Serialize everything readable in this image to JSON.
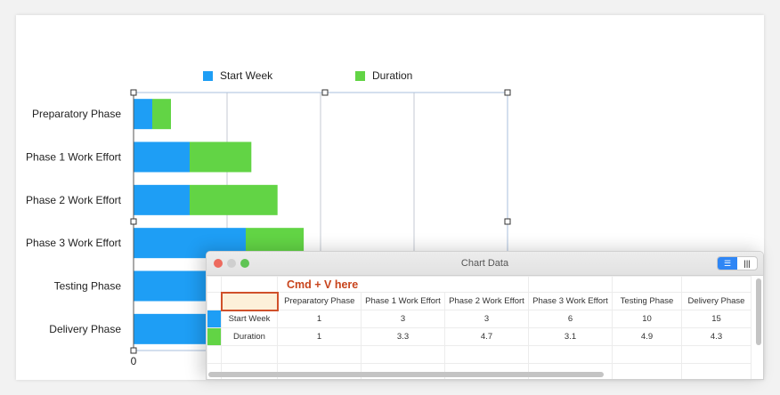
{
  "chart_data": {
    "type": "bar",
    "orientation": "horizontal",
    "stacked": true,
    "categories": [
      "Preparatory Phase",
      "Phase 1 Work Effort",
      "Phase 2 Work Effort",
      "Phase 3 Work Effort",
      "Testing Phase",
      "Delivery Phase"
    ],
    "series": [
      {
        "name": "Start Week",
        "values": [
          1,
          3,
          3,
          6,
          10,
          15
        ],
        "color": "#1e9ef5"
      },
      {
        "name": "Duration",
        "values": [
          1,
          3.3,
          4.7,
          3.1,
          4.9,
          4.3
        ],
        "color": "#62d445"
      }
    ],
    "xlim": [
      0,
      20
    ],
    "xticks_visible": [
      "0"
    ],
    "grid": true,
    "legend": "top"
  },
  "window": {
    "title": "Chart Data",
    "hint": "Cmd + V here",
    "view_toggle": [
      "☰",
      "|||"
    ],
    "columns": [
      "Preparatory Phase",
      "Phase 1 Work Effort",
      "Phase 2 Work Effort",
      "Phase 3 Work Effort",
      "Testing Phase",
      "Delivery Phase"
    ],
    "rows": [
      {
        "label": "Start Week",
        "color": "#1e9ef5",
        "values": [
          "1",
          "3",
          "3",
          "6",
          "10",
          "15"
        ]
      },
      {
        "label": "Duration",
        "color": "#62d445",
        "values": [
          "1",
          "3.3",
          "4.7",
          "3.1",
          "4.9",
          "4.3"
        ]
      }
    ]
  }
}
